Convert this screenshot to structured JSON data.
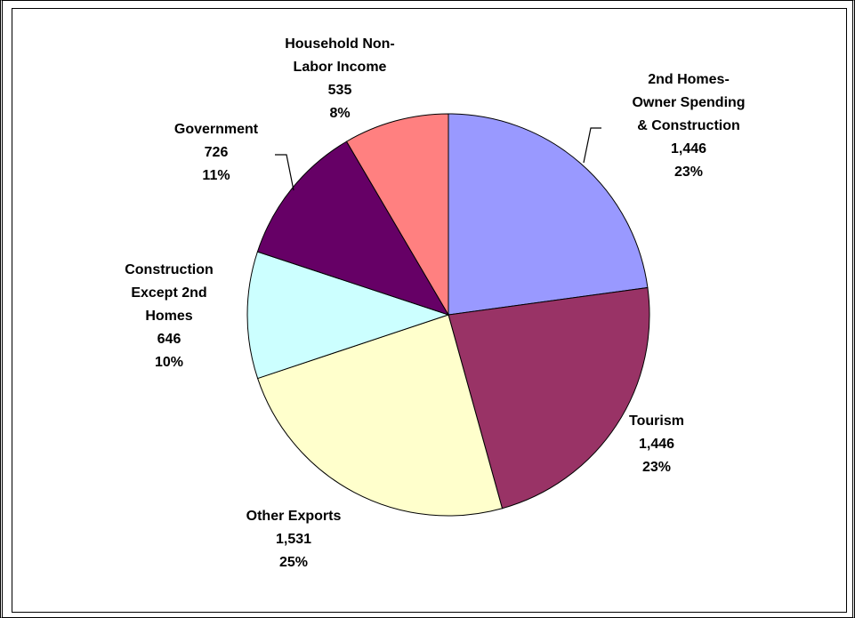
{
  "chart_data": {
    "type": "pie",
    "slices": [
      {
        "label": [
          "2nd Homes-",
          "Owner Spending",
          "& Construction"
        ],
        "value": 1446,
        "value_text": "1,446",
        "percent_text": "23%",
        "color": "#9999ff"
      },
      {
        "label": [
          "Tourism"
        ],
        "value": 1446,
        "value_text": "1,446",
        "percent_text": "23%",
        "color": "#993366"
      },
      {
        "label": [
          "Other Exports"
        ],
        "value": 1531,
        "value_text": "1,531",
        "percent_text": "25%",
        "color": "#ffffcc"
      },
      {
        "label": [
          "Construction",
          "Except 2nd",
          "Homes"
        ],
        "value": 646,
        "value_text": "646",
        "percent_text": "10%",
        "color": "#ccffff"
      },
      {
        "label": [
          "Government"
        ],
        "value": 726,
        "value_text": "726",
        "percent_text": "11%",
        "color": "#660066"
      },
      {
        "label": [
          "Household Non-",
          "Labor Income"
        ],
        "value": 535,
        "value_text": "535",
        "percent_text": "8%",
        "color": "#ff8080"
      }
    ],
    "start_angle": "12 o'clock",
    "direction": "clockwise",
    "legend": "none"
  }
}
